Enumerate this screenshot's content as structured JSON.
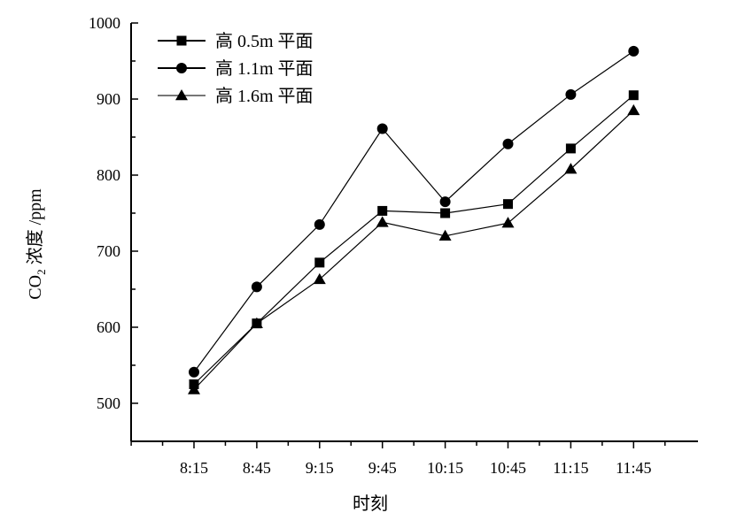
{
  "chart_data": {
    "type": "line",
    "xlabel": "时刻",
    "ylabel_main": "CO",
    "ylabel_sub": "2",
    "ylabel_rest": " 浓度 /ppm",
    "categories": [
      "8:15",
      "8:45",
      "9:15",
      "9:45",
      "10:15",
      "10:45",
      "11:15",
      "11:45"
    ],
    "ylim": [
      450,
      1000
    ],
    "yticks": [
      500,
      600,
      700,
      800,
      900,
      1000
    ],
    "grid": false,
    "legend_position": "top-left",
    "series": [
      {
        "name": "高 0.5m 平面",
        "marker": "square",
        "values": [
          525,
          605,
          685,
          753,
          750,
          762,
          835,
          905
        ]
      },
      {
        "name": "高 1.1m 平面",
        "marker": "circle",
        "values": [
          541,
          653,
          735,
          861,
          765,
          841,
          906,
          963
        ]
      },
      {
        "name": "高 1.6m 平面",
        "marker": "triangle",
        "values": [
          518,
          605,
          663,
          738,
          720,
          737,
          808,
          885
        ]
      }
    ]
  }
}
